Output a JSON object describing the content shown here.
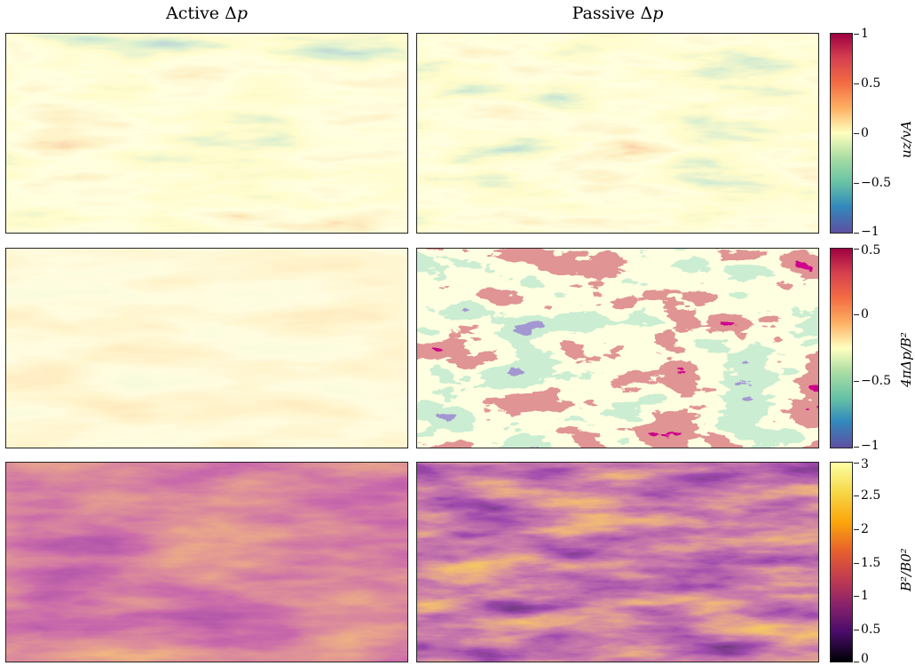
{
  "columns": {
    "left_title": "Active Δp",
    "right_title": "Passive Δp"
  },
  "rows": [
    {
      "quantity": "uz/vA",
      "colorbar_label": "uz/vA",
      "ticks": [
        "1",
        "0.5",
        "0",
        "−0.5",
        "−1"
      ],
      "colormap": "spectral (red-yellow-blue)"
    },
    {
      "quantity": "4πΔp/B²",
      "colorbar_label": "4πΔp/B²",
      "ticks": [
        "0.5",
        "0",
        "−0.5",
        "−1"
      ],
      "colormap": "spectral (red-yellow-blue)"
    },
    {
      "quantity": "B²/B0²",
      "colorbar_label": "B²/B0²",
      "ticks": [
        "3",
        "2.5",
        "2",
        "1.5",
        "1",
        "0.5",
        "0"
      ],
      "colormap": "inferno (black-purple-orange-yellow)"
    }
  ],
  "colors": {
    "spectral_red": "#9e0142",
    "spectral_orange": "#f46d43",
    "spectral_yellow": "#ffffbf",
    "spectral_green": "#66c2a5",
    "spectral_blue": "#5e4fa2",
    "inferno_black": "#000004",
    "inferno_purple": "#57106e",
    "inferno_red": "#bc3754",
    "inferno_orange": "#f98e09",
    "inferno_yellow": "#fcffa4"
  }
}
